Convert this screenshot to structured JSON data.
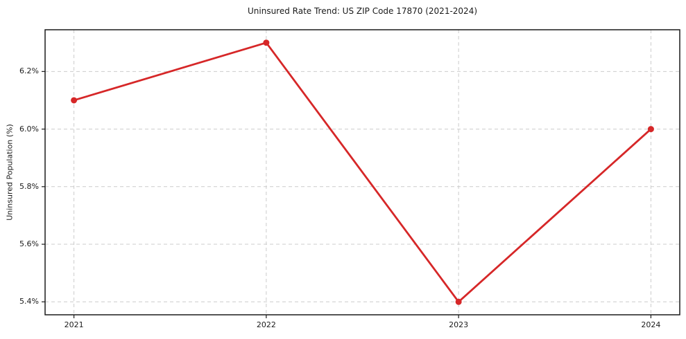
{
  "chart_data": {
    "type": "line",
    "title": "Uninsured Rate Trend: US ZIP Code 17870 (2021-2024)",
    "xlabel": "",
    "ylabel": "Uninsured Population (%)",
    "x": [
      2021,
      2022,
      2023,
      2024
    ],
    "x_tick_labels": [
      "2021",
      "2022",
      "2023",
      "2024"
    ],
    "y_ticks": [
      5.4,
      5.6,
      5.8,
      6.0,
      6.2
    ],
    "y_tick_labels": [
      "5.4%",
      "5.6%",
      "5.8%",
      "6.0%",
      "6.2%"
    ],
    "series": [
      {
        "name": "Uninsured Population (%)",
        "values": [
          6.1,
          6.3,
          5.4,
          6.0
        ],
        "color": "#d62728",
        "marker": "circle"
      }
    ],
    "xlim": [
      2020.85,
      2024.15
    ],
    "ylim": [
      5.355,
      6.345
    ],
    "grid": true,
    "grid_style": "dashed",
    "grid_color": "#cccccc",
    "spine_color": "#1a1a1a",
    "background_color": "#ffffff",
    "line_width": 2.8,
    "marker_size": 9,
    "legend": "none"
  }
}
